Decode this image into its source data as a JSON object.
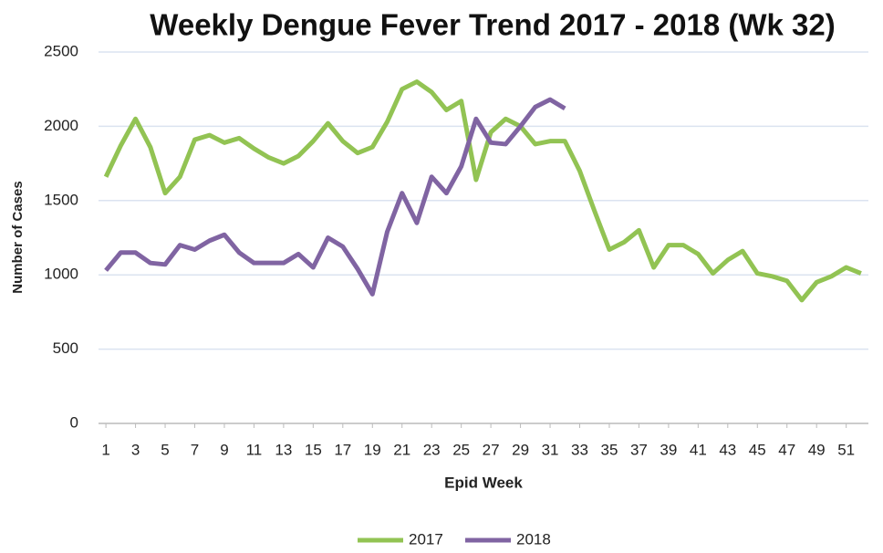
{
  "chart_data": {
    "type": "line",
    "title": "Weekly Dengue Fever Trend 2017 - 2018 (Wk 32)",
    "x_label": "Epid Week",
    "y_label": "Number of Cases",
    "x": [
      1,
      2,
      3,
      4,
      5,
      6,
      7,
      8,
      9,
      10,
      11,
      12,
      13,
      14,
      15,
      16,
      17,
      18,
      19,
      20,
      21,
      22,
      23,
      24,
      25,
      26,
      27,
      28,
      29,
      30,
      31,
      32,
      33,
      34,
      35,
      36,
      37,
      38,
      39,
      40,
      41,
      42,
      43,
      44,
      45,
      46,
      47,
      48,
      49,
      50,
      51,
      52
    ],
    "xlim": [
      0.5,
      52.5
    ],
    "xticks": [
      1,
      3,
      5,
      7,
      9,
      11,
      13,
      15,
      17,
      19,
      21,
      23,
      25,
      27,
      29,
      31,
      33,
      35,
      37,
      39,
      41,
      43,
      45,
      47,
      49,
      51
    ],
    "ylim": [
      0,
      2500
    ],
    "yticks": [
      0,
      500,
      1000,
      1500,
      2000,
      2500
    ],
    "grid": true,
    "legend": "bottom",
    "series": [
      {
        "name": "2017",
        "color": "#92c353",
        "values": [
          1660,
          1870,
          2050,
          1860,
          1550,
          1660,
          1910,
          1940,
          1890,
          1920,
          1850,
          1790,
          1750,
          1800,
          1900,
          2020,
          1900,
          1820,
          1860,
          2030,
          2250,
          2300,
          2230,
          2110,
          2170,
          1640,
          1960,
          2050,
          2000,
          1880,
          1900,
          1900,
          1700,
          1430,
          1170,
          1220,
          1300,
          1050,
          1200,
          1200,
          1140,
          1010,
          1100,
          1160,
          1010,
          990,
          960,
          830,
          950,
          990,
          1050,
          1010
        ]
      },
      {
        "name": "2018",
        "color": "#8064a2",
        "values": [
          1030,
          1150,
          1150,
          1080,
          1070,
          1200,
          1170,
          1230,
          1270,
          1150,
          1080,
          1080,
          1080,
          1140,
          1050,
          1250,
          1190,
          1040,
          870,
          1290,
          1550,
          1350,
          1660,
          1550,
          1730,
          2050,
          1890,
          1880,
          2000,
          2130,
          2180,
          2120,
          null,
          null,
          null,
          null,
          null,
          null,
          null,
          null,
          null,
          null,
          null,
          null,
          null,
          null,
          null,
          null,
          null,
          null,
          null,
          null
        ]
      }
    ]
  }
}
